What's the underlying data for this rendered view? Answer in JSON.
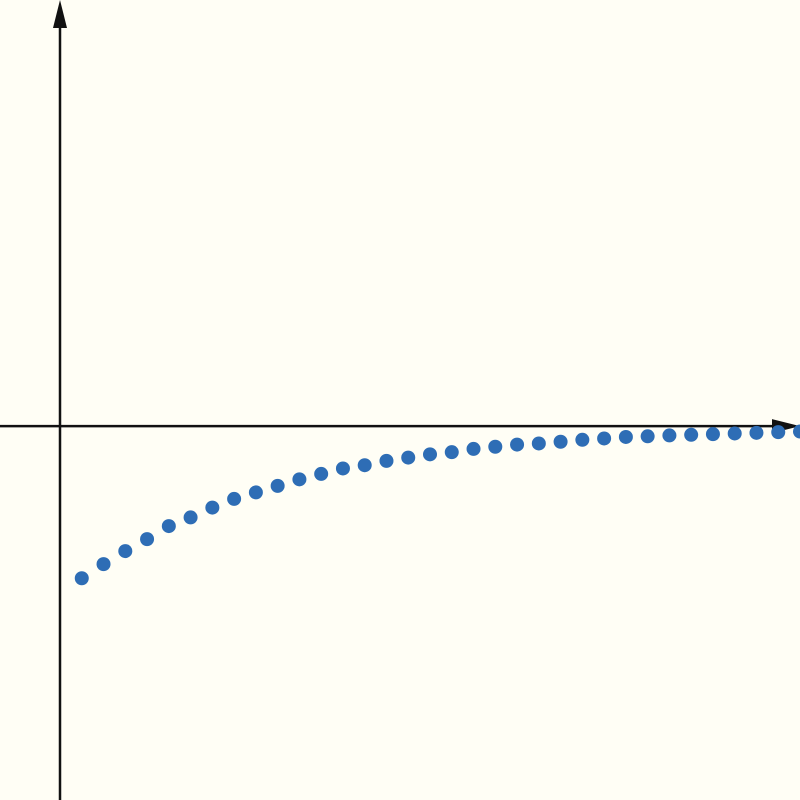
{
  "colors": {
    "background": "#fffef5",
    "axis": "#111111",
    "points": "#2e6db5"
  },
  "chart_data": {
    "type": "scatter",
    "title": "",
    "xlabel": "",
    "ylabel": "",
    "grid": false,
    "axes_style": "arrows-through-origin",
    "xlim": [
      0,
      34
    ],
    "ylim": [
      -17.2,
      19.6
    ],
    "x": [
      1,
      2,
      3,
      4,
      5,
      6,
      7,
      8,
      9,
      10,
      11,
      12,
      13,
      14,
      15,
      16,
      17,
      18,
      19,
      20,
      21,
      22,
      23,
      24,
      25,
      26,
      27,
      28,
      29,
      30,
      31,
      32,
      33,
      34
    ],
    "y": [
      -7.0,
      -6.35,
      -5.75,
      -5.2,
      -4.6,
      -4.2,
      -3.75,
      -3.35,
      -3.05,
      -2.75,
      -2.45,
      -2.2,
      -1.95,
      -1.8,
      -1.6,
      -1.45,
      -1.3,
      -1.2,
      -1.05,
      -0.95,
      -0.85,
      -0.8,
      -0.72,
      -0.63,
      -0.57,
      -0.5,
      -0.47,
      -0.43,
      -0.4,
      -0.37,
      -0.34,
      -0.31,
      -0.28,
      -0.25
    ]
  }
}
